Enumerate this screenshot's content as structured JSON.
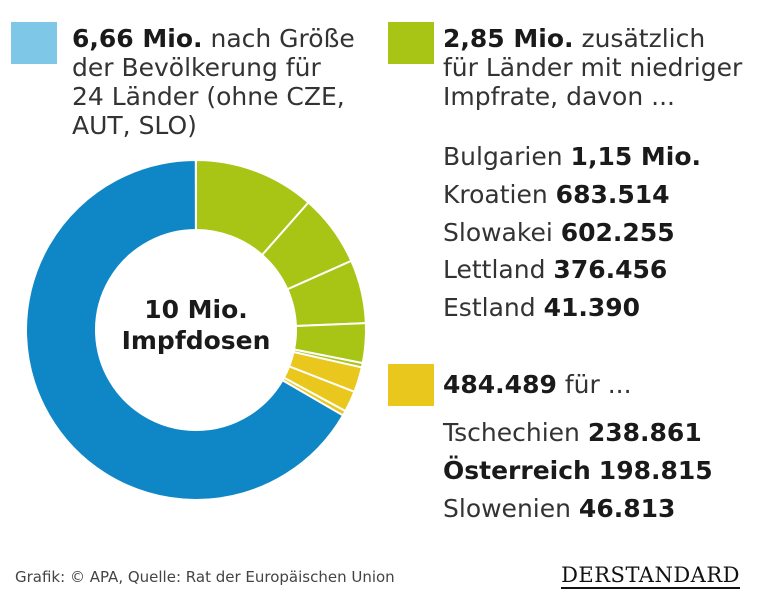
{
  "chart_data": {
    "type": "pie",
    "center_label": [
      "10 Mio.",
      "Impfdosen"
    ],
    "total": 10000000,
    "slices": [
      {
        "group": "population",
        "value": 6660000
      },
      {
        "group": "low_vaccination",
        "label": "Bulgarien",
        "value": 1150000
      },
      {
        "group": "low_vaccination",
        "label": "Kroatien",
        "value": 683514
      },
      {
        "group": "low_vaccination",
        "label": "Slowakei",
        "value": 602255
      },
      {
        "group": "low_vaccination",
        "label": "Lettland",
        "value": 376456
      },
      {
        "group": "low_vaccination",
        "label": "Estland",
        "value": 41390
      },
      {
        "group": "other",
        "label": "Tschechien",
        "value": 238861
      },
      {
        "group": "other",
        "label": "Österreich",
        "value": 198815
      },
      {
        "group": "other",
        "label": "Slowenien",
        "value": 46813
      }
    ],
    "colors": {
      "population": "#0f87c6",
      "low_vaccination": "#a8c414",
      "other": "#e9c71c"
    }
  },
  "legend": {
    "population": {
      "swatch_color": "#7fc7e6",
      "value": "6,66 Mio.",
      "text_line1": "nach Größe",
      "text_line2": "der Bevölkerung für",
      "text_line3": "24 Länder (ohne CZE,",
      "text_line4": "AUT, SLO)"
    },
    "low_vaccination": {
      "swatch_color": "#a8c414",
      "value": "2,85 Mio.",
      "text_line1": "zusätzlich",
      "text_line2": "für Länder mit niedriger",
      "text_line3": "Impfrate, davon ...",
      "countries": [
        {
          "name": "Bulgarien",
          "value": "1,15 Mio."
        },
        {
          "name": "Kroatien",
          "value": "683.514"
        },
        {
          "name": "Slowakei",
          "value": "602.255"
        },
        {
          "name": "Lettland",
          "value": "376.456"
        },
        {
          "name": "Estland",
          "value": "41.390"
        }
      ]
    },
    "other": {
      "swatch_color": "#e9c71c",
      "value": "484.489",
      "text_line1": "für ...",
      "countries": [
        {
          "name": "Tschechien",
          "value": "238.861",
          "highlight": false
        },
        {
          "name": "Österreich",
          "value": "198.815",
          "highlight": true
        },
        {
          "name": "Slowenien",
          "value": "46.813",
          "highlight": false
        }
      ]
    }
  },
  "footer": {
    "credit": "Grafik: © APA, Quelle: Rat der Europäischen Union",
    "logo": "DERSTANDARD"
  }
}
